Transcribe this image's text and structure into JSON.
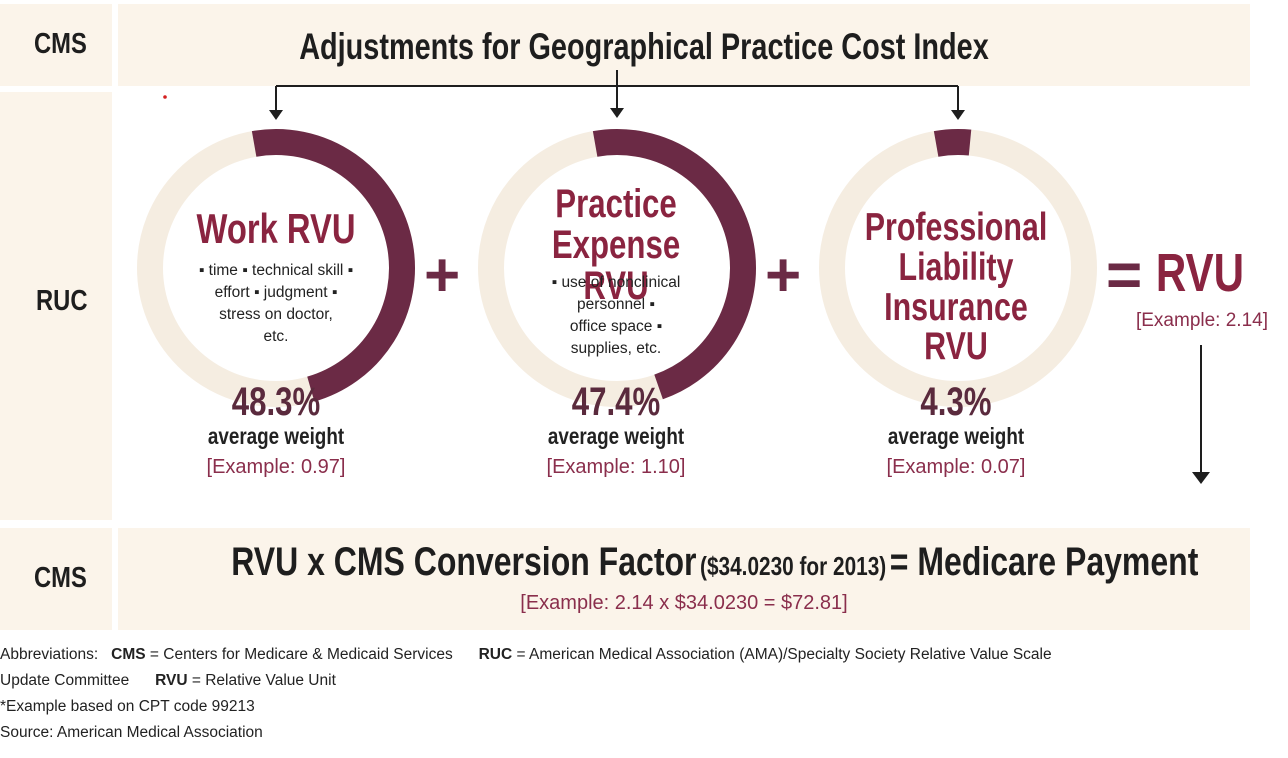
{
  "colors": {
    "band": "#fbf4ea",
    "ring_track": "#f5ede1",
    "ring_fill": "#6b2a45",
    "title_red": "#8a2440",
    "example": "#8a2e4c"
  },
  "top_band": {
    "label": "CMS",
    "title": "Adjustments for Geographical Practice Cost Index"
  },
  "middle": {
    "label": "RUC"
  },
  "components": [
    {
      "title_lines": [
        "Work RVU"
      ],
      "bullets": [
        "▪ time ▪ technical skill ▪",
        "effort ▪ judgment ▪",
        "stress on doctor,",
        "etc."
      ],
      "percent": "48.3%",
      "percent_value": 48.3,
      "avg_label": "average weight",
      "example": "[Example: 0.97]"
    },
    {
      "title_lines": [
        "Practice",
        "Expense RVU"
      ],
      "bullets": [
        "▪ use of nonclinical",
        "personnel ▪",
        "office space ▪",
        "supplies, etc."
      ],
      "percent": "47.4%",
      "percent_value": 47.4,
      "avg_label": "average weight",
      "example": "[Example: 1.10]"
    },
    {
      "title_lines": [
        "Professional",
        "Liability",
        "Insurance RVU"
      ],
      "bullets": [],
      "percent": "4.3%",
      "percent_value": 4.3,
      "avg_label": "average weight",
      "example": "[Example: 0.07]"
    }
  ],
  "operators": {
    "plus": "+",
    "equals": "="
  },
  "result": {
    "label": "RVU",
    "example": "[Example: 2.14]"
  },
  "bottom_band": {
    "label": "CMS",
    "formula_main": "RVU x CMS Conversion Factor",
    "formula_factor": "($34.0230 for 2013)",
    "formula_result": "= Medicare Payment",
    "example": "[Example: 2.14 x $34.0230 = $72.81]"
  },
  "footer": {
    "abbrev_prefix": "Abbreviations:",
    "cms_abbr": "CMS",
    "cms_def": "= Centers for Medicare & Medicaid Services",
    "ruc_abbr": "RUC",
    "ruc_def": "= American Medical Association (AMA)/Specialty Society Relative Value Scale",
    "ruc_def_cont": "Update Committee",
    "rvu_abbr": "RVU",
    "rvu_def": "= Relative Value Unit",
    "note": "*Example based on CPT code 99213",
    "source": "Source: American Medical Association"
  }
}
